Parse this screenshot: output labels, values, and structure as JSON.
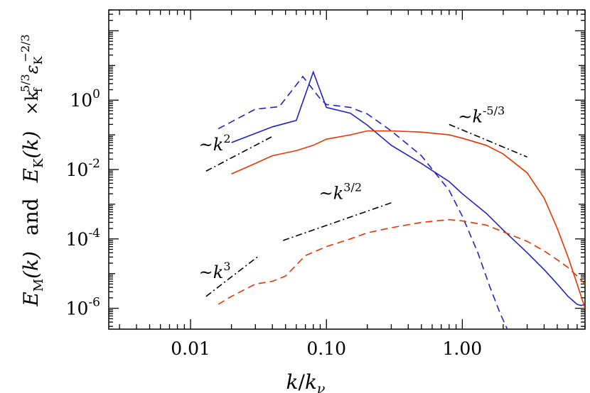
{
  "chart_data": {
    "type": "line",
    "title": "",
    "xlabel": "k/k_ν",
    "ylabel": "E_M(k) and E_K(k) ×k_f^{5/3} ε_K^{-2/3}",
    "xscale": "log",
    "yscale": "log",
    "xlim": [
      0.0025,
      8.0
    ],
    "ylim": [
      2.5e-07,
      400
    ],
    "xticks": [
      {
        "value": 0.01,
        "label": "0.01"
      },
      {
        "value": 0.1,
        "label": "0.10"
      },
      {
        "value": 1.0,
        "label": "1.00"
      }
    ],
    "yticks": [
      {
        "value": 1,
        "base": "10",
        "exp": "0"
      },
      {
        "value": 0.01,
        "base": "10",
        "exp": "-2"
      },
      {
        "value": 0.0001,
        "base": "10",
        "exp": "-4"
      },
      {
        "value": 1e-06,
        "base": "10",
        "exp": "-6"
      }
    ],
    "series": [
      {
        "id": "blue-solid",
        "color": "#2222cc",
        "dash": "solid",
        "x": [
          0.02,
          0.04,
          0.06,
          0.08,
          0.1,
          0.15,
          0.2,
          0.3,
          0.5,
          0.8,
          1.0,
          1.5,
          2.0,
          3.0,
          4.0,
          5.0,
          6.0,
          7.0,
          7.5,
          8.0
        ],
        "y": [
          0.06,
          0.17,
          0.26,
          6.5,
          0.62,
          0.42,
          0.19,
          0.05,
          0.015,
          0.0045,
          0.002,
          0.00055,
          0.00018,
          4e-05,
          1.3e-05,
          5e-06,
          2.2e-06,
          1.3e-06,
          1.2e-06,
          1.3e-06
        ]
      },
      {
        "id": "blue-dashed",
        "color": "#2222cc",
        "dash": "dashed",
        "x": [
          0.016,
          0.03,
          0.045,
          0.067,
          0.09,
          0.1,
          0.15,
          0.2,
          0.3,
          0.5,
          0.8,
          1.0,
          1.3,
          1.6,
          1.9,
          2.2
        ],
        "y": [
          0.15,
          0.55,
          0.65,
          4.8,
          1.1,
          0.75,
          0.62,
          0.4,
          0.13,
          0.025,
          0.0025,
          0.00045,
          4e-05,
          4e-06,
          7e-07,
          2e-07
        ]
      },
      {
        "id": "red-solid",
        "color": "#ee3300",
        "dash": "solid",
        "x": [
          0.02,
          0.03,
          0.04,
          0.06,
          0.08,
          0.1,
          0.15,
          0.2,
          0.3,
          0.5,
          0.8,
          1.0,
          1.5,
          2.0,
          3.0,
          4.0,
          5.0,
          6.0,
          7.0,
          8.0
        ],
        "y": [
          0.0075,
          0.015,
          0.025,
          0.035,
          0.05,
          0.075,
          0.1,
          0.13,
          0.13,
          0.12,
          0.1,
          0.08,
          0.05,
          0.028,
          0.008,
          0.0015,
          0.0002,
          3e-05,
          5e-06,
          1e-06
        ]
      },
      {
        "id": "red-dashed",
        "color": "#ee3300",
        "dash": "dashed",
        "x": [
          0.016,
          0.02,
          0.03,
          0.04,
          0.05,
          0.07,
          0.1,
          0.15,
          0.2,
          0.3,
          0.5,
          0.8,
          1.0,
          1.5,
          2.0,
          3.0,
          4.0,
          5.0,
          6.0,
          7.0,
          8.0
        ],
        "y": [
          1.3e-06,
          2.2e-06,
          5e-06,
          6e-06,
          8.5e-06,
          3.3e-05,
          6e-05,
          0.0001,
          0.00015,
          0.00021,
          0.0003,
          0.00036,
          0.00033,
          0.00025,
          0.00016,
          8.5e-05,
          4.5e-05,
          2.5e-05,
          1.5e-05,
          8.5e-06,
          5e-06
        ]
      }
    ],
    "reference_lines": [
      {
        "id": "ref-k2",
        "x": [
          0.013,
          0.04
        ],
        "y": [
          0.009,
          0.09
        ]
      },
      {
        "id": "ref-k3",
        "x": [
          0.013,
          0.031
        ],
        "y": [
          2.2e-06,
          3e-05
        ]
      },
      {
        "id": "ref-k32",
        "x": [
          0.048,
          0.3
        ],
        "y": [
          9e-05,
          0.0011
        ]
      },
      {
        "id": "ref-k-53",
        "x": [
          0.8,
          3.0
        ],
        "y": [
          0.2,
          0.023
        ]
      }
    ],
    "annotations": [
      {
        "id": "annot-k2",
        "base": "~k",
        "exp": "2",
        "x": 0.0115,
        "y": 0.036
      },
      {
        "id": "annot-k3",
        "base": "~k",
        "exp": "3",
        "x": 0.0115,
        "y": 7.5e-06
      },
      {
        "id": "annot-k32",
        "base": "~k",
        "exp": "3/2",
        "x": 0.088,
        "y": 0.0014
      },
      {
        "id": "annot-k-53",
        "base": "~k",
        "exp": "-5/3",
        "x": 0.93,
        "y": 0.23
      }
    ]
  },
  "labels": {
    "xlabel_main": "k",
    "xlabel_den": "k",
    "xlabel_sub": "ν",
    "ylabel_em": "E",
    "ylabel_em_sub": "M",
    "ylabel_em_arg": "(k)",
    "ylabel_and": "and",
    "ylabel_ek": "E",
    "ylabel_ek_sub": "K",
    "ylabel_ek_arg": "(k)",
    "ylabel_times": "×k",
    "ylabel_kf_sub": "f",
    "ylabel_kf_exp": "5/3",
    "ylabel_eps": "ε",
    "ylabel_eps_sub": "K",
    "ylabel_eps_exp": "−2/3"
  }
}
